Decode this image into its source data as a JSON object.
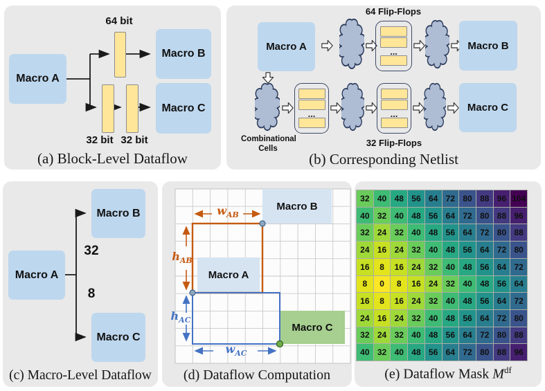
{
  "panels": {
    "a": {
      "caption": "(a) Block-Level Dataflow",
      "macro_a": "Macro A",
      "macro_b": "Macro B",
      "macro_c": "Macro C",
      "reg64_label": "64 bit",
      "reg32a_label": "32 bit",
      "reg32b_label": "32 bit"
    },
    "b": {
      "caption": "(b) Corresponding Netlist",
      "macro_a": "Macro A",
      "macro_b": "Macro B",
      "macro_c": "Macro C",
      "ff64_label": "64 Flip-Flops",
      "ff32_label": "32 Flip-Flops",
      "comb_line1": "Combinational",
      "comb_line2": "Cells",
      "ellipsis": "..."
    },
    "c": {
      "caption": "(c) Macro-Level Dataflow",
      "macro_a": "Macro A",
      "macro_b": "Macro B",
      "macro_c": "Macro C",
      "weight_ab": "32",
      "weight_ac": "8"
    },
    "d": {
      "caption": "(d) Dataflow Computation",
      "macro_a": "Macro A",
      "macro_b": "Macro B",
      "macro_c": "Macro C",
      "w_ab_base": "w",
      "w_ab_sub": "AB",
      "h_ab_base": "h",
      "h_ab_sub": "AB",
      "h_ac_base": "h",
      "h_ac_sub": "AC",
      "w_ac_base": "w",
      "w_ac_sub": "AC"
    },
    "e": {
      "caption_prefix": "(e) Dataflow Mask ",
      "caption_var": "M",
      "caption_sup": "df"
    }
  },
  "colors": {
    "panel_bg": "#e9e9e9",
    "macro_fill": "#bdd7ee",
    "macro_fill_light": "#d6e4f2",
    "macro_green": "#a6cf90",
    "register_fill": "#ffe699",
    "register_border": "#8c8c8c",
    "cloud_fill": "#aebdd4",
    "cloud_stroke": "#2b3a5c",
    "wire_black": "#1a1a1a",
    "orange": "#c55a11",
    "blue": "#4472c4",
    "grid_bg": "#fcfcfc",
    "grid_line": "#c9c9c9",
    "pin_fill": "#8fa8bf",
    "pin_stroke": "#40648a",
    "pin_green": "#70ad47",
    "pin_green_stroke": "#2f5d1e",
    "heat_grid": "#a9afa7"
  },
  "chart_data": {
    "type": "heatmap",
    "title": "Dataflow Mask M^df",
    "rows": 10,
    "cols": 10,
    "values": [
      [
        32,
        40,
        48,
        56,
        64,
        72,
        80,
        88,
        96,
        104
      ],
      [
        40,
        32,
        40,
        48,
        56,
        64,
        72,
        80,
        88,
        96
      ],
      [
        32,
        24,
        32,
        40,
        48,
        56,
        64,
        72,
        80,
        88
      ],
      [
        24,
        16,
        24,
        32,
        40,
        48,
        56,
        64,
        72,
        80
      ],
      [
        16,
        8,
        16,
        24,
        32,
        40,
        48,
        56,
        64,
        72
      ],
      [
        8,
        0,
        8,
        16,
        24,
        32,
        40,
        48,
        56,
        64
      ],
      [
        16,
        8,
        16,
        24,
        32,
        40,
        48,
        56,
        64,
        72
      ],
      [
        24,
        16,
        24,
        32,
        40,
        48,
        56,
        64,
        72,
        80
      ],
      [
        32,
        24,
        32,
        40,
        48,
        56,
        64,
        72,
        80,
        88
      ],
      [
        40,
        32,
        40,
        48,
        56,
        64,
        72,
        80,
        88,
        96
      ]
    ],
    "vmin": 0,
    "vmax": 104,
    "colormap": "viridis reversed (0 = yellow, max = dark purple)",
    "colormap_stops": [
      "#440154",
      "#482878",
      "#3e4989",
      "#31688e",
      "#26828e",
      "#1f9e89",
      "#35b779",
      "#6ece58",
      "#b5de2b",
      "#dce319",
      "#fde725"
    ],
    "grid": true,
    "legend": false
  }
}
